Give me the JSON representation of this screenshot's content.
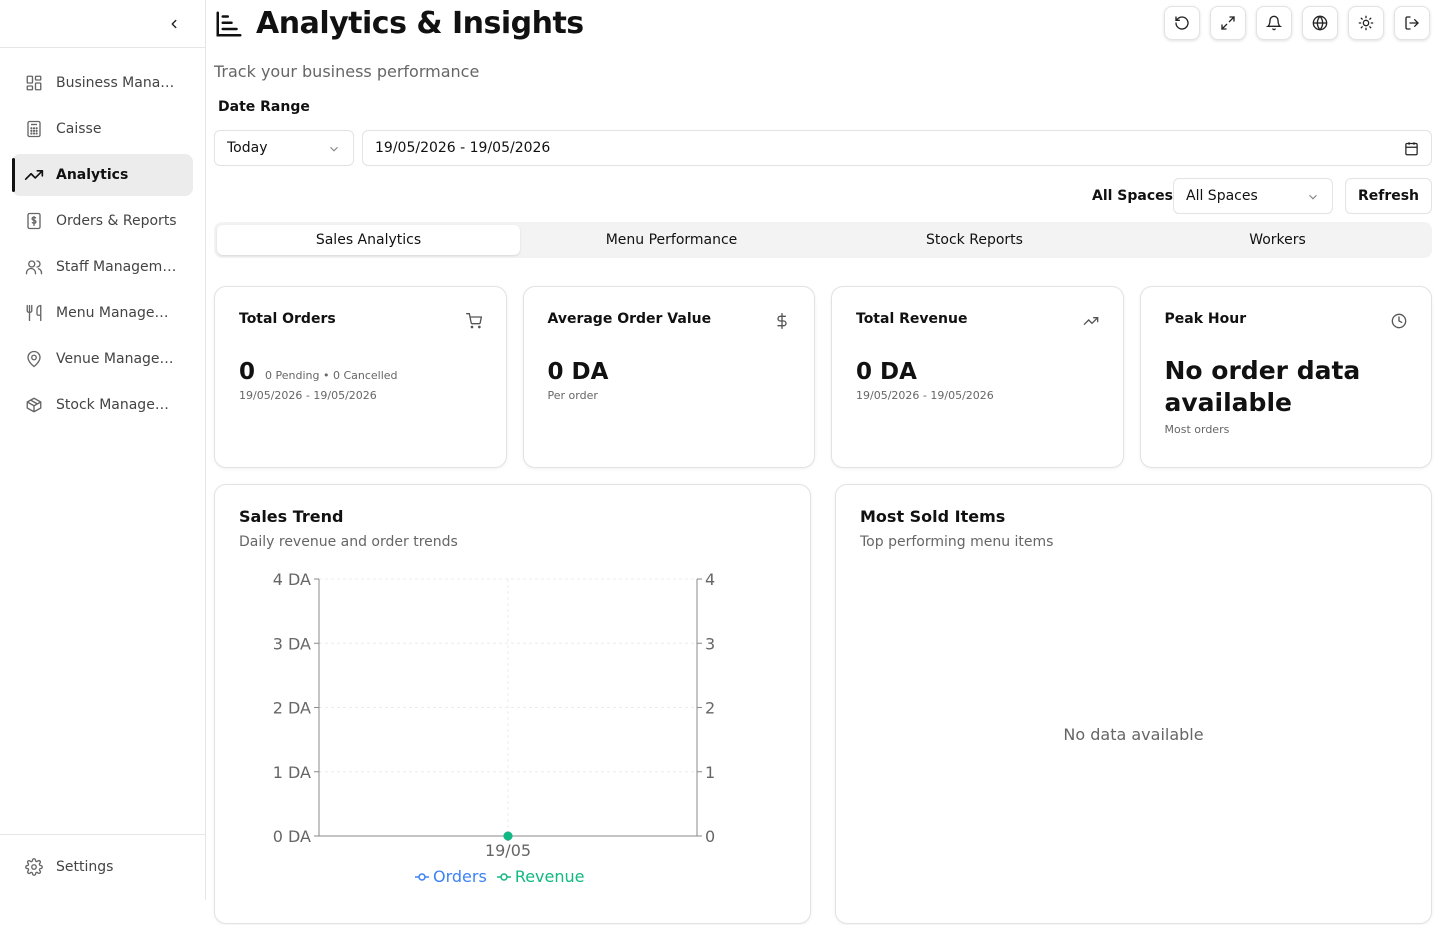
{
  "sidebar": {
    "items": [
      {
        "label": "Business Management",
        "icon": "layout-grid-icon"
      },
      {
        "label": "Caisse",
        "icon": "calculator-icon"
      },
      {
        "label": "Analytics",
        "icon": "trending-up-icon"
      },
      {
        "label": "Orders & Reports",
        "icon": "receipt-icon"
      },
      {
        "label": "Staff Management",
        "icon": "users-icon"
      },
      {
        "label": "Menu Management",
        "icon": "utensils-icon"
      },
      {
        "label": "Venue Management",
        "icon": "map-pin-icon"
      },
      {
        "label": "Stock Management",
        "icon": "package-icon"
      }
    ],
    "settings_label": "Settings"
  },
  "header": {
    "title": "Analytics & Insights",
    "subtitle": "Track your business performance"
  },
  "filters": {
    "date_range_label": "Date Range",
    "period": "Today",
    "date_range": "19/05/2026 - 19/05/2026",
    "spaces_label": "All Spaces",
    "spaces_value": "All Spaces",
    "refresh_label": "Refresh"
  },
  "tabs": [
    "Sales Analytics",
    "Menu Performance",
    "Stock Reports",
    "Workers"
  ],
  "cards": {
    "total_orders": {
      "title": "Total Orders",
      "value": "0",
      "extra": "0 Pending • 0 Cancelled",
      "sub": "19/05/2026 - 19/05/2026"
    },
    "avg_order": {
      "title": "Average Order Value",
      "value": "0 DA",
      "sub": "Per order"
    },
    "total_revenue": {
      "title": "Total Revenue",
      "value": "0 DA",
      "sub": "19/05/2026 - 19/05/2026"
    },
    "peak_hour": {
      "title": "Peak Hour",
      "value": "No order data available",
      "sub": "Most orders"
    }
  },
  "sales_trend": {
    "title": "Sales Trend",
    "subtitle": "Daily revenue and order trends"
  },
  "most_sold": {
    "title": "Most Sold Items",
    "subtitle": "Top performing menu items",
    "empty": "No data available"
  },
  "colors": {
    "orders": "#3b82f6",
    "revenue": "#10b981"
  },
  "chart_data": {
    "type": "line",
    "categories": [
      "19/05"
    ],
    "series": [
      {
        "name": "Orders",
        "values": [
          0
        ],
        "axis": "right"
      },
      {
        "name": "Revenue",
        "values": [
          0
        ],
        "axis": "left"
      }
    ],
    "left_ticks": [
      "0 DA",
      "1 DA",
      "2 DA",
      "3 DA",
      "4 DA"
    ],
    "right_ticks": [
      "0",
      "1",
      "2",
      "3",
      "4"
    ],
    "ylim": [
      0,
      4
    ],
    "legend": "bottom"
  }
}
